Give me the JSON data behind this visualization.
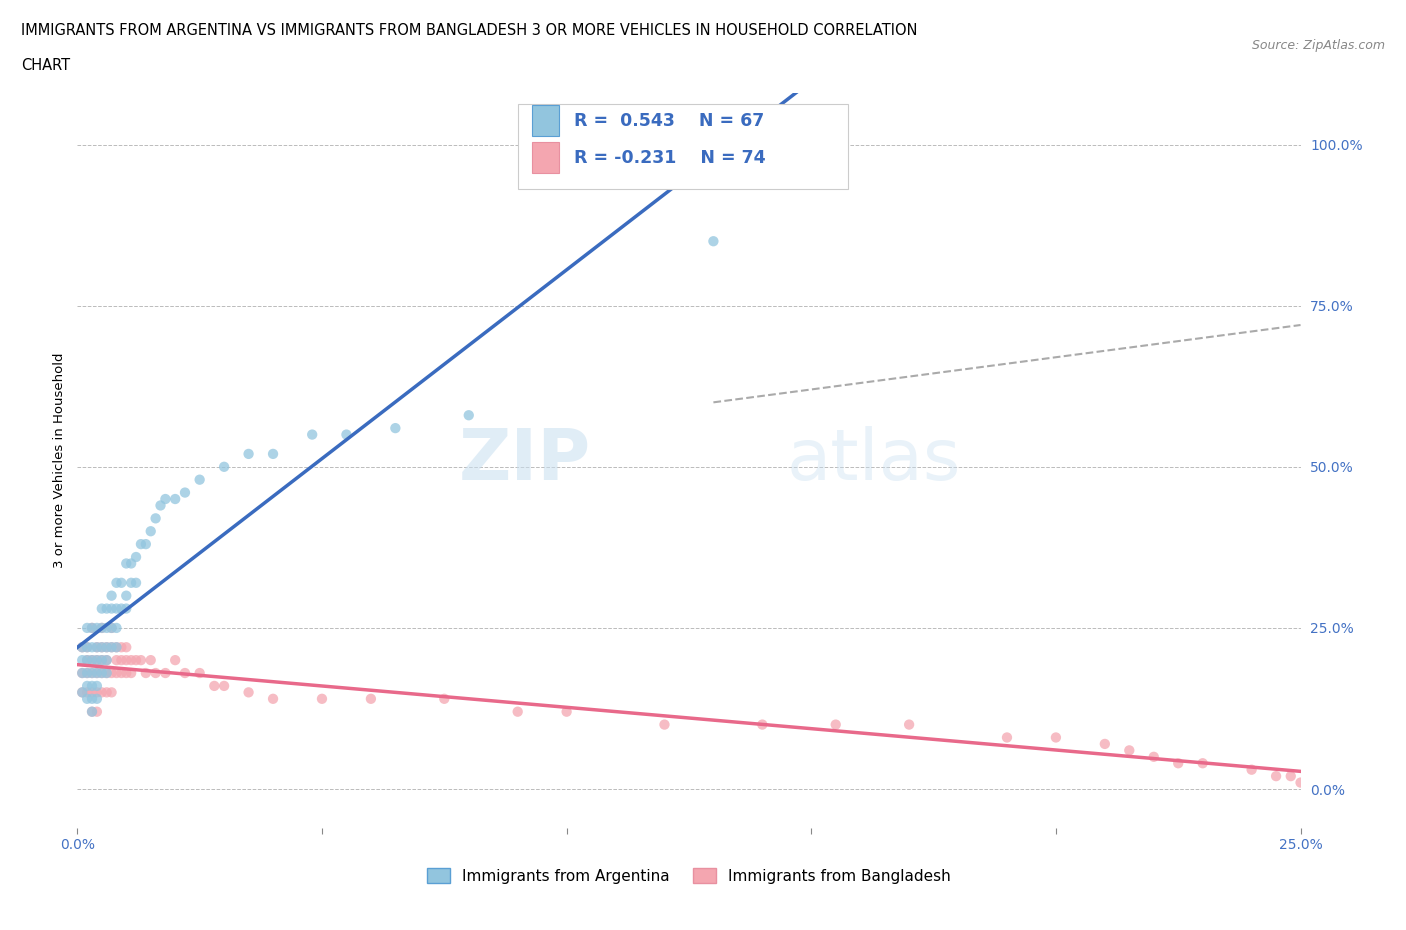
{
  "title_line1": "IMMIGRANTS FROM ARGENTINA VS IMMIGRANTS FROM BANGLADESH 3 OR MORE VEHICLES IN HOUSEHOLD CORRELATION",
  "title_line2": "CHART",
  "source_text": "Source: ZipAtlas.com",
  "ylabel": "3 or more Vehicles in Household",
  "xlim": [
    0.0,
    0.25
  ],
  "ylim": [
    -0.06,
    1.08
  ],
  "xticks": [
    0.0,
    0.05,
    0.1,
    0.15,
    0.2,
    0.25
  ],
  "xticklabels": [
    "0.0%",
    "",
    "",
    "",
    "",
    "25.0%"
  ],
  "yticks_right": [
    0.0,
    0.25,
    0.5,
    0.75,
    1.0
  ],
  "ytick_right_labels": [
    "0.0%",
    "25.0%",
    "50.0%",
    "75.0%",
    "100.0%"
  ],
  "argentina_color": "#92c5de",
  "bangladesh_color": "#f4a6b0",
  "legend_label_argentina": "Immigrants from Argentina",
  "legend_label_bangladesh": "Immigrants from Bangladesh",
  "watermark_zip": "ZIP",
  "watermark_atlas": "atlas",
  "argentina_R": "0.543",
  "argentina_N": "67",
  "bangladesh_R": "-0.231",
  "bangladesh_N": "74",
  "grid_color": "#bbbbbb",
  "background_color": "#ffffff",
  "trend_arg_color": "#3a6bbf",
  "trend_ban_color": "#e8698a",
  "dashed_color": "#aaaaaa",
  "argentina_x": [
    0.001,
    0.001,
    0.001,
    0.001,
    0.002,
    0.002,
    0.002,
    0.002,
    0.002,
    0.002,
    0.003,
    0.003,
    0.003,
    0.003,
    0.003,
    0.003,
    0.003,
    0.004,
    0.004,
    0.004,
    0.004,
    0.004,
    0.004,
    0.005,
    0.005,
    0.005,
    0.005,
    0.005,
    0.006,
    0.006,
    0.006,
    0.006,
    0.006,
    0.007,
    0.007,
    0.007,
    0.007,
    0.008,
    0.008,
    0.008,
    0.008,
    0.009,
    0.009,
    0.01,
    0.01,
    0.01,
    0.011,
    0.011,
    0.012,
    0.012,
    0.013,
    0.014,
    0.015,
    0.016,
    0.017,
    0.018,
    0.02,
    0.022,
    0.025,
    0.03,
    0.035,
    0.04,
    0.048,
    0.055,
    0.065,
    0.08,
    0.13
  ],
  "argentina_y": [
    0.18,
    0.2,
    0.22,
    0.15,
    0.2,
    0.22,
    0.25,
    0.18,
    0.16,
    0.14,
    0.22,
    0.25,
    0.2,
    0.18,
    0.16,
    0.14,
    0.12,
    0.25,
    0.22,
    0.2,
    0.18,
    0.16,
    0.14,
    0.28,
    0.25,
    0.22,
    0.2,
    0.18,
    0.28,
    0.25,
    0.22,
    0.2,
    0.18,
    0.3,
    0.28,
    0.25,
    0.22,
    0.32,
    0.28,
    0.25,
    0.22,
    0.32,
    0.28,
    0.35,
    0.3,
    0.28,
    0.35,
    0.32,
    0.36,
    0.32,
    0.38,
    0.38,
    0.4,
    0.42,
    0.44,
    0.45,
    0.45,
    0.46,
    0.48,
    0.5,
    0.52,
    0.52,
    0.55,
    0.55,
    0.56,
    0.58,
    0.85
  ],
  "bangladesh_x": [
    0.001,
    0.001,
    0.001,
    0.002,
    0.002,
    0.002,
    0.002,
    0.003,
    0.003,
    0.003,
    0.003,
    0.003,
    0.004,
    0.004,
    0.004,
    0.004,
    0.004,
    0.005,
    0.005,
    0.005,
    0.005,
    0.005,
    0.006,
    0.006,
    0.006,
    0.006,
    0.007,
    0.007,
    0.007,
    0.007,
    0.008,
    0.008,
    0.008,
    0.009,
    0.009,
    0.009,
    0.01,
    0.01,
    0.01,
    0.011,
    0.011,
    0.012,
    0.013,
    0.014,
    0.015,
    0.016,
    0.018,
    0.02,
    0.022,
    0.025,
    0.028,
    0.03,
    0.035,
    0.04,
    0.05,
    0.06,
    0.075,
    0.09,
    0.1,
    0.12,
    0.14,
    0.155,
    0.17,
    0.19,
    0.2,
    0.21,
    0.215,
    0.22,
    0.225,
    0.23,
    0.24,
    0.245,
    0.248,
    0.25
  ],
  "bangladesh_y": [
    0.18,
    0.22,
    0.15,
    0.22,
    0.18,
    0.2,
    0.15,
    0.25,
    0.2,
    0.18,
    0.15,
    0.12,
    0.22,
    0.2,
    0.18,
    0.15,
    0.12,
    0.25,
    0.22,
    0.2,
    0.18,
    0.15,
    0.22,
    0.2,
    0.18,
    0.15,
    0.25,
    0.22,
    0.18,
    0.15,
    0.22,
    0.2,
    0.18,
    0.22,
    0.2,
    0.18,
    0.22,
    0.2,
    0.18,
    0.2,
    0.18,
    0.2,
    0.2,
    0.18,
    0.2,
    0.18,
    0.18,
    0.2,
    0.18,
    0.18,
    0.16,
    0.16,
    0.15,
    0.14,
    0.14,
    0.14,
    0.14,
    0.12,
    0.12,
    0.1,
    0.1,
    0.1,
    0.1,
    0.08,
    0.08,
    0.07,
    0.06,
    0.05,
    0.04,
    0.04,
    0.03,
    0.02,
    0.02,
    0.01
  ]
}
